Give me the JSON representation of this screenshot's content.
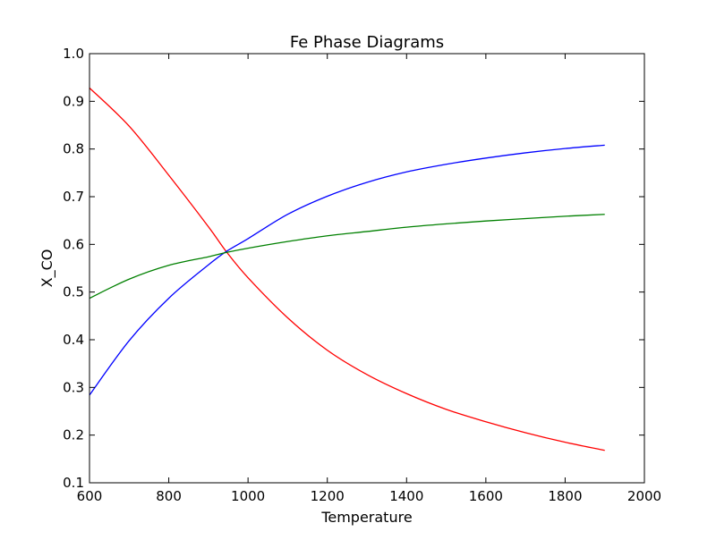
{
  "chart_data": {
    "type": "line",
    "title": "Fe Phase Diagrams",
    "xlabel": "Temperature",
    "ylabel": "X_CO",
    "xlim": [
      600,
      2000
    ],
    "ylim": [
      0.1,
      1.0
    ],
    "x_ticks": [
      "600",
      "800",
      "1000",
      "1200",
      "1400",
      "1600",
      "1800",
      "2000"
    ],
    "y_ticks": [
      "0.1",
      "0.2",
      "0.3",
      "0.4",
      "0.5",
      "0.6",
      "0.7",
      "0.8",
      "0.9",
      "1.0"
    ],
    "grid": false,
    "x": [
      600,
      700,
      800,
      900,
      945,
      1000,
      1100,
      1200,
      1300,
      1400,
      1500,
      1600,
      1700,
      1800,
      1900
    ],
    "series": [
      {
        "color": "#ff0000",
        "values": [
          0.928,
          0.848,
          0.745,
          0.637,
          0.585,
          0.53,
          0.446,
          0.378,
          0.327,
          0.287,
          0.254,
          0.228,
          0.205,
          0.185,
          0.168
        ]
      },
      {
        "color": "#0000ff",
        "values": [
          0.284,
          0.398,
          0.487,
          0.557,
          0.585,
          0.612,
          0.663,
          0.701,
          0.73,
          0.752,
          0.768,
          0.781,
          0.792,
          0.801,
          0.808
        ]
      },
      {
        "color": "#008000",
        "values": [
          0.487,
          0.527,
          0.556,
          0.574,
          0.583,
          0.592,
          0.606,
          0.618,
          0.627,
          0.636,
          0.643,
          0.649,
          0.654,
          0.659,
          0.663
        ]
      }
    ]
  }
}
